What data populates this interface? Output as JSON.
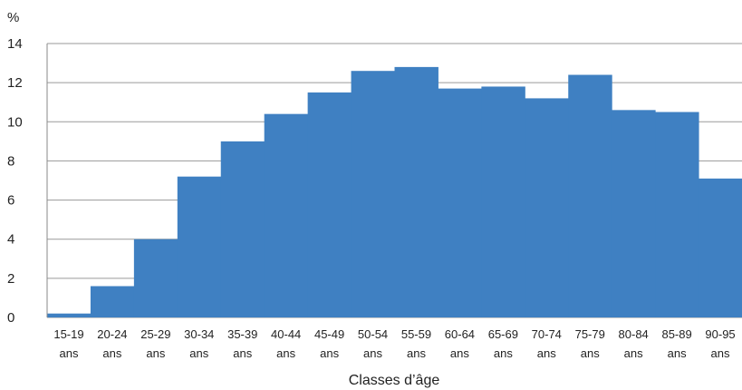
{
  "chart_data": {
    "type": "bar",
    "title": "",
    "xlabel": "Classes d’âge",
    "ylabel": "%",
    "ylim": [
      0,
      14
    ],
    "yticks": [
      0,
      2,
      4,
      6,
      8,
      10,
      12,
      14
    ],
    "grid": true,
    "legend": "none",
    "bar_color": "#3f80c2",
    "categories": [
      "15-19 ans",
      "20-24 ans",
      "25-29 ans",
      "30-34 ans",
      "35-39 ans",
      "40-44 ans",
      "45-49 ans",
      "50-54 ans",
      "55-59 ans",
      "60-64 ans",
      "65-69 ans",
      "70-74 ans",
      "75-79 ans",
      "80-84 ans",
      "85-89 ans",
      "90-95 ans"
    ],
    "values": [
      0.2,
      1.6,
      4.0,
      7.2,
      9.0,
      10.4,
      11.5,
      12.6,
      12.8,
      11.7,
      11.8,
      11.2,
      12.4,
      10.6,
      10.5,
      7.1
    ]
  }
}
